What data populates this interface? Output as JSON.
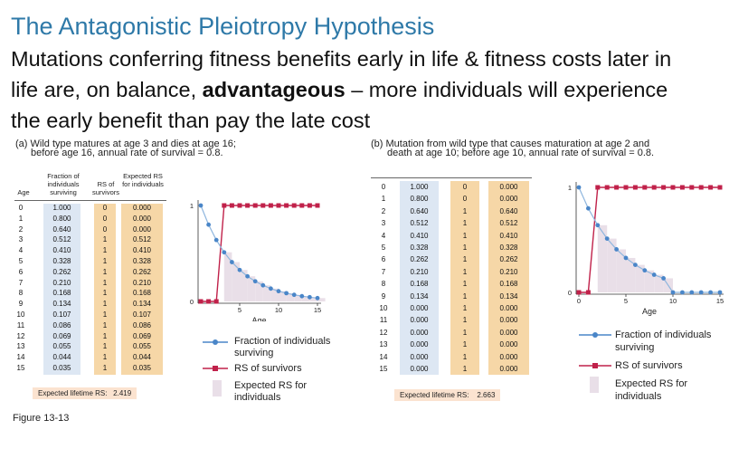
{
  "title": "The Antagonistic Pleiotropy Hypothesis",
  "subtitle": {
    "line1": "Mutations conferring fitness benefits early in life & fitness costs later in",
    "line2_pre": "life are, on balance, ",
    "line2_bold": "advantageous",
    "line2_post": " – more individuals will experience",
    "line3": "the early benefit than pay the late cost"
  },
  "colors": {
    "title": "#2e79a8",
    "survival": "#4a86c8",
    "rs": "#c0214a",
    "shade": "#e9dfe8",
    "blue_col": "#dde7f3",
    "orange_col": "#f6d7a7"
  },
  "figure_label": "Figure 13-13",
  "panel_a": {
    "caption_line1": "(a) Wild type matures at age 3 and dies at age 16;",
    "caption_line2": "before age 16, annual rate of survival = 0.8.",
    "headers": {
      "age": "Age",
      "surv": "Fraction of individuals surviving",
      "rs": "RS of survivors",
      "exp": "Expected RS for individuals"
    },
    "rows": [
      [
        "0",
        "1.000",
        "0",
        "0.000"
      ],
      [
        "1",
        "0.800",
        "0",
        "0.000"
      ],
      [
        "2",
        "0.640",
        "0",
        "0.000"
      ],
      [
        "3",
        "0.512",
        "1",
        "0.512"
      ],
      [
        "4",
        "0.410",
        "1",
        "0.410"
      ],
      [
        "5",
        "0.328",
        "1",
        "0.328"
      ],
      [
        "6",
        "0.262",
        "1",
        "0.262"
      ],
      [
        "7",
        "0.210",
        "1",
        "0.210"
      ],
      [
        "8",
        "0.168",
        "1",
        "0.168"
      ],
      [
        "9",
        "0.134",
        "1",
        "0.134"
      ],
      [
        "10",
        "0.107",
        "1",
        "0.107"
      ],
      [
        "11",
        "0.086",
        "1",
        "0.086"
      ],
      [
        "12",
        "0.069",
        "1",
        "0.069"
      ],
      [
        "13",
        "0.055",
        "1",
        "0.055"
      ],
      [
        "14",
        "0.044",
        "1",
        "0.044"
      ],
      [
        "15",
        "0.035",
        "1",
        "0.035"
      ]
    ],
    "footer_label": "Expected lifetime RS:",
    "footer_value": "2.419",
    "chart": {
      "xlabel": "Age",
      "xticks": [
        "5",
        "10",
        "15"
      ],
      "yticks": [
        "0",
        "1"
      ],
      "survival": [
        1.0,
        0.8,
        0.64,
        0.512,
        0.41,
        0.328,
        0.262,
        0.21,
        0.168,
        0.134,
        0.107,
        0.086,
        0.069,
        0.055,
        0.044,
        0.035
      ],
      "rs": [
        0,
        0,
        0,
        1,
        1,
        1,
        1,
        1,
        1,
        1,
        1,
        1,
        1,
        1,
        1,
        1
      ],
      "expected": [
        0,
        0,
        0,
        0.512,
        0.41,
        0.328,
        0.262,
        0.21,
        0.168,
        0.134,
        0.107,
        0.086,
        0.069,
        0.055,
        0.044,
        0.035
      ]
    }
  },
  "panel_b": {
    "caption_line1": "(b) Mutation from wild type that causes maturation at age 2 and",
    "caption_line2": "death at age 10; before age 10, annual rate of survival = 0.8.",
    "rows": [
      [
        "0",
        "1.000",
        "0",
        "0.000"
      ],
      [
        "1",
        "0.800",
        "0",
        "0.000"
      ],
      [
        "2",
        "0.640",
        "1",
        "0.640"
      ],
      [
        "3",
        "0.512",
        "1",
        "0.512"
      ],
      [
        "4",
        "0.410",
        "1",
        "0.410"
      ],
      [
        "5",
        "0.328",
        "1",
        "0.328"
      ],
      [
        "6",
        "0.262",
        "1",
        "0.262"
      ],
      [
        "7",
        "0.210",
        "1",
        "0.210"
      ],
      [
        "8",
        "0.168",
        "1",
        "0.168"
      ],
      [
        "9",
        "0.134",
        "1",
        "0.134"
      ],
      [
        "10",
        "0.000",
        "1",
        "0.000"
      ],
      [
        "11",
        "0.000",
        "1",
        "0.000"
      ],
      [
        "12",
        "0.000",
        "1",
        "0.000"
      ],
      [
        "13",
        "0.000",
        "1",
        "0.000"
      ],
      [
        "14",
        "0.000",
        "1",
        "0.000"
      ],
      [
        "15",
        "0.000",
        "1",
        "0.000"
      ]
    ],
    "footer_label": "Expected lifetime RS:",
    "footer_value": "2.663",
    "chart": {
      "xlabel": "Age",
      "xticks": [
        "0",
        "5",
        "10",
        "15"
      ],
      "yticks": [
        "0",
        "1"
      ],
      "survival": [
        1.0,
        0.8,
        0.64,
        0.512,
        0.41,
        0.328,
        0.262,
        0.21,
        0.168,
        0.134,
        0,
        0,
        0,
        0,
        0,
        0
      ],
      "rs": [
        0,
        0,
        1,
        1,
        1,
        1,
        1,
        1,
        1,
        1,
        1,
        1,
        1,
        1,
        1,
        1
      ],
      "expected": [
        0,
        0,
        0.64,
        0.512,
        0.41,
        0.328,
        0.262,
        0.21,
        0.168,
        0.134,
        0,
        0,
        0,
        0,
        0,
        0
      ]
    }
  },
  "legend": {
    "survival_line1": "Fraction of individuals",
    "survival_line2": "surviving",
    "rs": "RS of survivors",
    "expected_line1": "Expected RS for",
    "expected_line2": "individuals"
  }
}
